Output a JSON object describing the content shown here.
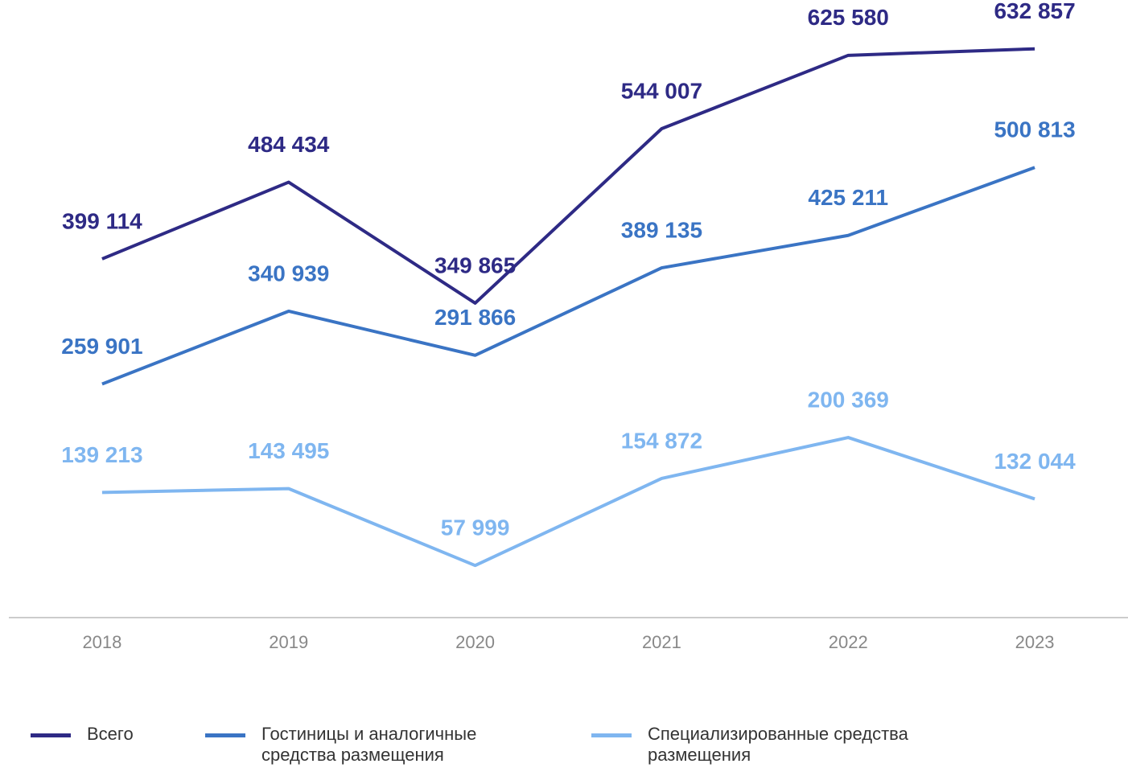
{
  "chart_data": {
    "type": "line",
    "categories": [
      "2018",
      "2019",
      "2020",
      "2021",
      "2022",
      "2023"
    ],
    "series": [
      {
        "name": "Всего",
        "color": "#2e2a85",
        "values": [
          399114,
          484434,
          349865,
          544007,
          625580,
          632857
        ],
        "value_labels": [
          "399 114",
          "484 434",
          "349 865",
          "544 007",
          "625 580",
          "632 857"
        ]
      },
      {
        "name": "Гостиницы и аналогичные средства размещения",
        "color": "#3a74c4",
        "values": [
          259901,
          340939,
          291866,
          389135,
          425211,
          500813
        ],
        "value_labels": [
          "259 901",
          "340 939",
          "291 866",
          "389 135",
          "425 211",
          "500 813"
        ]
      },
      {
        "name": "Специализированные средства размещения",
        "color": "#7fb6f0",
        "values": [
          139213,
          143495,
          57999,
          154872,
          200369,
          132044
        ],
        "value_labels": [
          "139 213",
          "143 495",
          "57 999",
          "154 872",
          "200 369",
          "132 044"
        ]
      }
    ],
    "ylim": [
      0,
      680000
    ]
  }
}
